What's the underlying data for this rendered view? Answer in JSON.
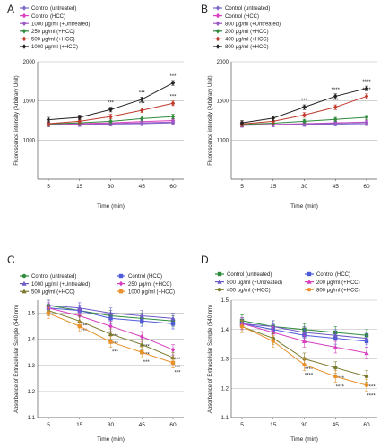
{
  "chart_data": [
    {
      "panel": "A",
      "type": "line",
      "ylabel": "Fluorescence intensity (Arbitrary Unit)",
      "xlabel": "Time (min)",
      "x": [
        5,
        15,
        30,
        45,
        60
      ],
      "x_ticks": [
        "5",
        "15",
        "30",
        "45",
        "60"
      ],
      "y_ticks": [
        "1000",
        "1500",
        "2000"
      ],
      "ylim": [
        500,
        2000
      ],
      "grid": "horizontal",
      "legend_position": "top-left",
      "series": [
        {
          "name": "Control (untreated)",
          "color": "#7b68c8",
          "values": [
            1195,
            1200,
            1205,
            1210,
            1220
          ],
          "errors": [
            25,
            25,
            25,
            25,
            25
          ],
          "sig": [
            "",
            "",
            "",
            "",
            ""
          ]
        },
        {
          "name": "Control (HCC)",
          "color": "#e03fbf",
          "values": [
            1200,
            1210,
            1220,
            1235,
            1250
          ],
          "errors": [
            25,
            25,
            25,
            25,
            25
          ],
          "sig": [
            "",
            "",
            "",
            "",
            ""
          ]
        },
        {
          "name": "1000 μg/ml (+Untreated)",
          "color": "#9b59c4",
          "values": [
            1195,
            1200,
            1210,
            1220,
            1230
          ],
          "errors": [
            25,
            25,
            25,
            25,
            25
          ],
          "sig": [
            "",
            "",
            "",
            "",
            ""
          ]
        },
        {
          "name": "250 μg/ml (+HCC)",
          "color": "#2e8b3c",
          "values": [
            1205,
            1220,
            1240,
            1275,
            1300
          ],
          "errors": [
            30,
            30,
            30,
            30,
            30
          ],
          "sig": [
            "",
            "",
            "",
            "",
            ""
          ]
        },
        {
          "name": "500 μg/ml (+HCC)",
          "color": "#c0392b",
          "values": [
            1210,
            1240,
            1300,
            1380,
            1470
          ],
          "errors": [
            30,
            30,
            30,
            30,
            30
          ],
          "sig": [
            "",
            "",
            "***",
            "***",
            "***"
          ]
        },
        {
          "name": "1000 μg/ml (+HCC)",
          "color": "#222222",
          "values": [
            1260,
            1290,
            1390,
            1520,
            1730
          ],
          "errors": [
            30,
            30,
            30,
            30,
            30
          ],
          "sig": [
            "",
            "",
            "***",
            "***",
            "***"
          ]
        }
      ]
    },
    {
      "panel": "B",
      "type": "line",
      "ylabel": "Fluorescence intensity (Arbitrary Unit)",
      "xlabel": "Time (min)",
      "x": [
        5,
        15,
        30,
        45,
        60
      ],
      "x_ticks": [
        "5",
        "15",
        "30",
        "45",
        "60"
      ],
      "y_ticks": [
        "1000",
        "1500",
        "2000"
      ],
      "ylim": [
        500,
        2000
      ],
      "grid": "horizontal",
      "legend_position": "top-left",
      "series": [
        {
          "name": "Control (untreated)",
          "color": "#7b68c8",
          "values": [
            1190,
            1195,
            1200,
            1205,
            1210
          ],
          "errors": [
            25,
            25,
            25,
            25,
            25
          ],
          "sig": [
            "",
            "",
            "",
            "",
            ""
          ]
        },
        {
          "name": "Control (HCC)",
          "color": "#e03fbf",
          "values": [
            1195,
            1200,
            1210,
            1220,
            1230
          ],
          "errors": [
            25,
            25,
            25,
            25,
            25
          ],
          "sig": [
            "",
            "",
            "",
            "",
            ""
          ]
        },
        {
          "name": "800 μg/ml (+Untreated)",
          "color": "#9b59c4",
          "values": [
            1190,
            1195,
            1205,
            1215,
            1225
          ],
          "errors": [
            25,
            25,
            25,
            25,
            25
          ],
          "sig": [
            "",
            "",
            "",
            "",
            ""
          ]
        },
        {
          "name": "200 μg/ml (+HCC)",
          "color": "#2e8b3c",
          "values": [
            1200,
            1215,
            1240,
            1265,
            1290
          ],
          "errors": [
            25,
            25,
            25,
            25,
            25
          ],
          "sig": [
            "",
            "",
            "",
            "",
            ""
          ]
        },
        {
          "name": "400 μg/ml (+HCC)",
          "color": "#c0392b",
          "values": [
            1205,
            1240,
            1320,
            1420,
            1560
          ],
          "errors": [
            30,
            30,
            30,
            30,
            30
          ],
          "sig": [
            "",
            "",
            "***",
            "***",
            "****"
          ]
        },
        {
          "name": "800 μg/ml (+HCC)",
          "color": "#222222",
          "values": [
            1220,
            1280,
            1420,
            1560,
            1660
          ],
          "errors": [
            30,
            30,
            30,
            30,
            30
          ],
          "sig": [
            "",
            "",
            "***",
            "****",
            "****"
          ]
        }
      ]
    },
    {
      "panel": "C",
      "type": "line",
      "ylabel": "Absorbance of Extracellular Sample (540 nm)",
      "xlabel": "Time (min)",
      "x": [
        5,
        15,
        30,
        45,
        60
      ],
      "x_ticks": [
        "5",
        "15",
        "30",
        "45",
        "60"
      ],
      "y_ticks": [
        "1.1",
        "1.2",
        "1.3",
        "1.4",
        "1.5"
      ],
      "ylim": [
        1.1,
        1.55
      ],
      "grid": "horizontal",
      "legend_position": "top",
      "series": [
        {
          "name": "Control (untreated)",
          "color": "#2e8b3c",
          "values": [
            1.53,
            1.51,
            1.49,
            1.48,
            1.47
          ],
          "errors": [
            0.02,
            0.02,
            0.02,
            0.02,
            0.02
          ],
          "sig": [
            "",
            "",
            "",
            "",
            ""
          ]
        },
        {
          "name": "Control (HCC)",
          "color": "#4d5bd9",
          "values": [
            1.52,
            1.51,
            1.48,
            1.47,
            1.46
          ],
          "errors": [
            0.02,
            0.02,
            0.02,
            0.02,
            0.02
          ],
          "sig": [
            "",
            "",
            "",
            "",
            ""
          ]
        },
        {
          "name": "1000 μg/ml (+Untreated)",
          "color": "#6c5ac7",
          "values": [
            1.53,
            1.52,
            1.5,
            1.49,
            1.48
          ],
          "errors": [
            0.02,
            0.02,
            0.02,
            0.02,
            0.02
          ],
          "sig": [
            "",
            "",
            "",
            "",
            ""
          ]
        },
        {
          "name": "250 μg/ml (+HCC)",
          "color": "#d63fbf",
          "values": [
            1.52,
            1.49,
            1.45,
            1.41,
            1.36
          ],
          "errors": [
            0.02,
            0.02,
            0.02,
            0.02,
            0.02
          ],
          "sig": [
            "",
            "***",
            "***",
            "***",
            "***"
          ]
        },
        {
          "name": "500 μg/ml (+HCC)",
          "color": "#7a7a2e",
          "values": [
            1.51,
            1.47,
            1.42,
            1.38,
            1.33
          ],
          "errors": [
            0.02,
            0.02,
            0.02,
            0.02,
            0.02
          ],
          "sig": [
            "",
            "***",
            "***",
            "***",
            "***"
          ]
        },
        {
          "name": "1000 μg/ml (+HCC)",
          "color": "#e8912d",
          "values": [
            1.5,
            1.45,
            1.39,
            1.35,
            1.31
          ],
          "errors": [
            0.02,
            0.02,
            0.02,
            0.02,
            0.02
          ],
          "sig": [
            "",
            "",
            "***",
            "***",
            "***"
          ]
        }
      ]
    },
    {
      "panel": "D",
      "type": "line",
      "ylabel": "Absorbance of Extracellular Sample (540 nm)",
      "xlabel": "Time (min)",
      "x": [
        5,
        15,
        30,
        45,
        60
      ],
      "x_ticks": [
        "5",
        "15",
        "30",
        "45",
        "60"
      ],
      "y_ticks": [
        "1.1",
        "1.2",
        "1.3",
        "1.4",
        "1.5"
      ],
      "ylim": [
        1.1,
        1.5
      ],
      "grid": "horizontal",
      "legend_position": "top",
      "series": [
        {
          "name": "Control (untreated)",
          "color": "#2e8b3c",
          "values": [
            1.43,
            1.41,
            1.4,
            1.39,
            1.38
          ],
          "errors": [
            0.02,
            0.02,
            0.02,
            0.02,
            0.02
          ],
          "sig": [
            "",
            "",
            "",
            "",
            ""
          ]
        },
        {
          "name": "Control (HCC)",
          "color": "#4d5bd9",
          "values": [
            1.42,
            1.4,
            1.38,
            1.37,
            1.36
          ],
          "errors": [
            0.02,
            0.02,
            0.02,
            0.02,
            0.02
          ],
          "sig": [
            "",
            "",
            "",
            "",
            ""
          ]
        },
        {
          "name": "800 μg/ml (+Untreated)",
          "color": "#6c5ac7",
          "values": [
            1.42,
            1.41,
            1.39,
            1.38,
            1.37
          ],
          "errors": [
            0.02,
            0.02,
            0.02,
            0.02,
            0.02
          ],
          "sig": [
            "",
            "",
            "",
            "",
            ""
          ]
        },
        {
          "name": "200 μg/ml (+HCC)",
          "color": "#d63fbf",
          "values": [
            1.42,
            1.39,
            1.36,
            1.34,
            1.32
          ],
          "errors": [
            0.02,
            0.02,
            0.02,
            0.02,
            0.02
          ],
          "sig": [
            "",
            "",
            "",
            "",
            ""
          ]
        },
        {
          "name": "400 μg/ml (+HCC)",
          "color": "#7a7a2e",
          "values": [
            1.41,
            1.37,
            1.3,
            1.27,
            1.24
          ],
          "errors": [
            0.02,
            0.02,
            0.02,
            0.02,
            0.02
          ],
          "sig": [
            "",
            "",
            "****",
            "****",
            "****"
          ]
        },
        {
          "name": "800 μg/ml (+HCC)",
          "color": "#e8912d",
          "values": [
            1.41,
            1.36,
            1.28,
            1.24,
            1.21
          ],
          "errors": [
            0.02,
            0.02,
            0.02,
            0.02,
            0.02
          ],
          "sig": [
            "",
            "",
            "****",
            "****",
            "****"
          ]
        }
      ]
    }
  ]
}
